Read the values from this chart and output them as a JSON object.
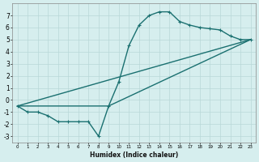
{
  "xlabel": "Humidex (Indice chaleur)",
  "ylabel": "",
  "background_color": "#d6eeee",
  "grid_color": "#b8d8d8",
  "line_color": "#1a7070",
  "xlim": [
    -0.5,
    23.5
  ],
  "ylim": [
    -3.5,
    8.0
  ],
  "xticks": [
    0,
    1,
    2,
    3,
    4,
    5,
    6,
    7,
    8,
    9,
    10,
    11,
    12,
    13,
    14,
    15,
    16,
    17,
    18,
    19,
    20,
    21,
    22,
    23
  ],
  "yticks": [
    -3,
    -2,
    -1,
    0,
    1,
    2,
    3,
    4,
    5,
    6,
    7
  ],
  "curve1_x": [
    0,
    1,
    2,
    3,
    4,
    5,
    6,
    7,
    8,
    9,
    10,
    11,
    12,
    13,
    14,
    15,
    16,
    17,
    18,
    19,
    20,
    21,
    22,
    23
  ],
  "curve1_y": [
    -0.5,
    -1.0,
    -1.0,
    -1.3,
    -1.8,
    -1.8,
    -1.8,
    -1.8,
    -3.0,
    -0.5,
    1.5,
    4.5,
    6.2,
    7.0,
    7.3,
    7.3,
    6.5,
    6.2,
    6.0,
    5.9,
    5.8,
    5.3,
    5.0,
    5.0
  ],
  "curve2_x": [
    0,
    23
  ],
  "curve2_y": [
    -0.5,
    5.0
  ],
  "curve3_x": [
    0,
    9,
    23
  ],
  "curve3_y": [
    -0.5,
    -0.5,
    5.0
  ],
  "line_width": 1.0,
  "marker": "+",
  "marker_size": 3.0
}
